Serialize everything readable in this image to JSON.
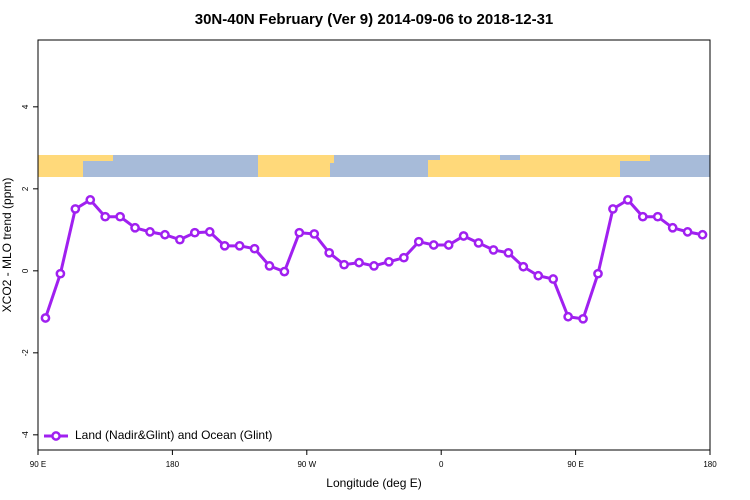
{
  "chart_data": {
    "type": "line",
    "title": "30N-40N February (Ver 9)   2014-09-06 to 2018-12-31",
    "xlabel": "Longitude (deg E)",
    "ylabel": "XCO2 - MLO trend (ppm)",
    "x": [
      95,
      105,
      115,
      125,
      135,
      145,
      155,
      165,
      175,
      185,
      195,
      205,
      215,
      225,
      235,
      245,
      255,
      265,
      275,
      285,
      295,
      305,
      315,
      325,
      335,
      345,
      355,
      365,
      375,
      385,
      395,
      405,
      415,
      425,
      435,
      445,
      455,
      465,
      475,
      485,
      495,
      505,
      515,
      525,
      535
    ],
    "series": [
      {
        "name": "Land (Nadir&Glint) and Ocean (Glint)",
        "color": "#a020f0",
        "values": [
          -1.15,
          -0.07,
          1.51,
          1.73,
          1.32,
          1.32,
          1.05,
          0.95,
          0.88,
          0.76,
          0.93,
          0.95,
          0.61,
          0.61,
          0.54,
          0.12,
          -0.02,
          0.93,
          0.9,
          0.44,
          0.15,
          0.2,
          0.12,
          0.22,
          0.32,
          0.71,
          0.63,
          0.63,
          0.85,
          0.68,
          0.51,
          0.44,
          0.1,
          -0.12,
          -0.2,
          -1.12,
          -1.17,
          -0.07,
          1.51,
          1.73,
          1.32,
          1.32,
          1.05,
          0.95,
          0.88
        ]
      }
    ],
    "xlim": [
      90,
      540
    ],
    "xticks": [
      {
        "value": 90,
        "label": "90 E"
      },
      180,
      {
        "value": 270,
        "label": "90 W"
      },
      {
        "value": 360,
        "label": "0"
      },
      {
        "value": 450,
        "label": "90 E"
      },
      {
        "value": 540,
        "label": "180"
      }
    ],
    "ylim": [
      -4.37,
      5.63
    ],
    "yticks": [
      -4,
      -2,
      0,
      2,
      4
    ],
    "legend": "bottom-left"
  }
}
